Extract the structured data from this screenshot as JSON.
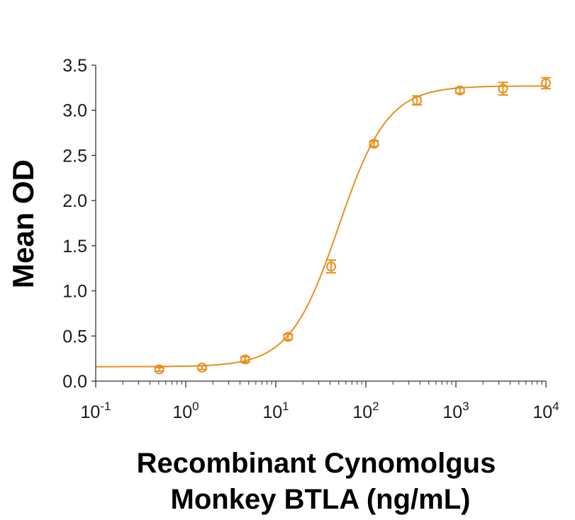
{
  "chart_data": {
    "type": "scatter",
    "title": "",
    "xlabel_lines": [
      "Recombinant Cynomolgus",
      "Monkey BTLA (ng/mL)"
    ],
    "ylabel": "Mean OD",
    "x_scale": "log10",
    "xlim": [
      0.1,
      10000
    ],
    "ylim": [
      0,
      3.5
    ],
    "x_ticks": [
      {
        "value": 0.1,
        "base": "10",
        "exp": "-1"
      },
      {
        "value": 1,
        "base": "10",
        "exp": "0"
      },
      {
        "value": 10,
        "base": "10",
        "exp": "1"
      },
      {
        "value": 100,
        "base": "10",
        "exp": "2"
      },
      {
        "value": 1000,
        "base": "10",
        "exp": "3"
      },
      {
        "value": 10000,
        "base": "10",
        "exp": "4"
      }
    ],
    "y_ticks": [
      "0.0",
      "0.5",
      "1.0",
      "1.5",
      "2.0",
      "2.5",
      "3.0",
      "3.5"
    ],
    "grid": false,
    "legend": "none",
    "color": "#E8901C",
    "series": [
      {
        "x": [
          0.508,
          1.52,
          4.57,
          13.7,
          41.2,
          123,
          370,
          1111,
          3333,
          10000
        ],
        "y": [
          0.13,
          0.15,
          0.24,
          0.49,
          1.27,
          2.63,
          3.11,
          3.22,
          3.24,
          3.3
        ],
        "error": [
          0.02,
          0.02,
          0.03,
          0.03,
          0.07,
          0.03,
          0.05,
          0.03,
          0.07,
          0.06
        ]
      }
    ],
    "fit": {
      "model": "4PL",
      "bottom": 0.16,
      "top": 3.27,
      "ec50": 50,
      "hill": 1.6
    }
  }
}
